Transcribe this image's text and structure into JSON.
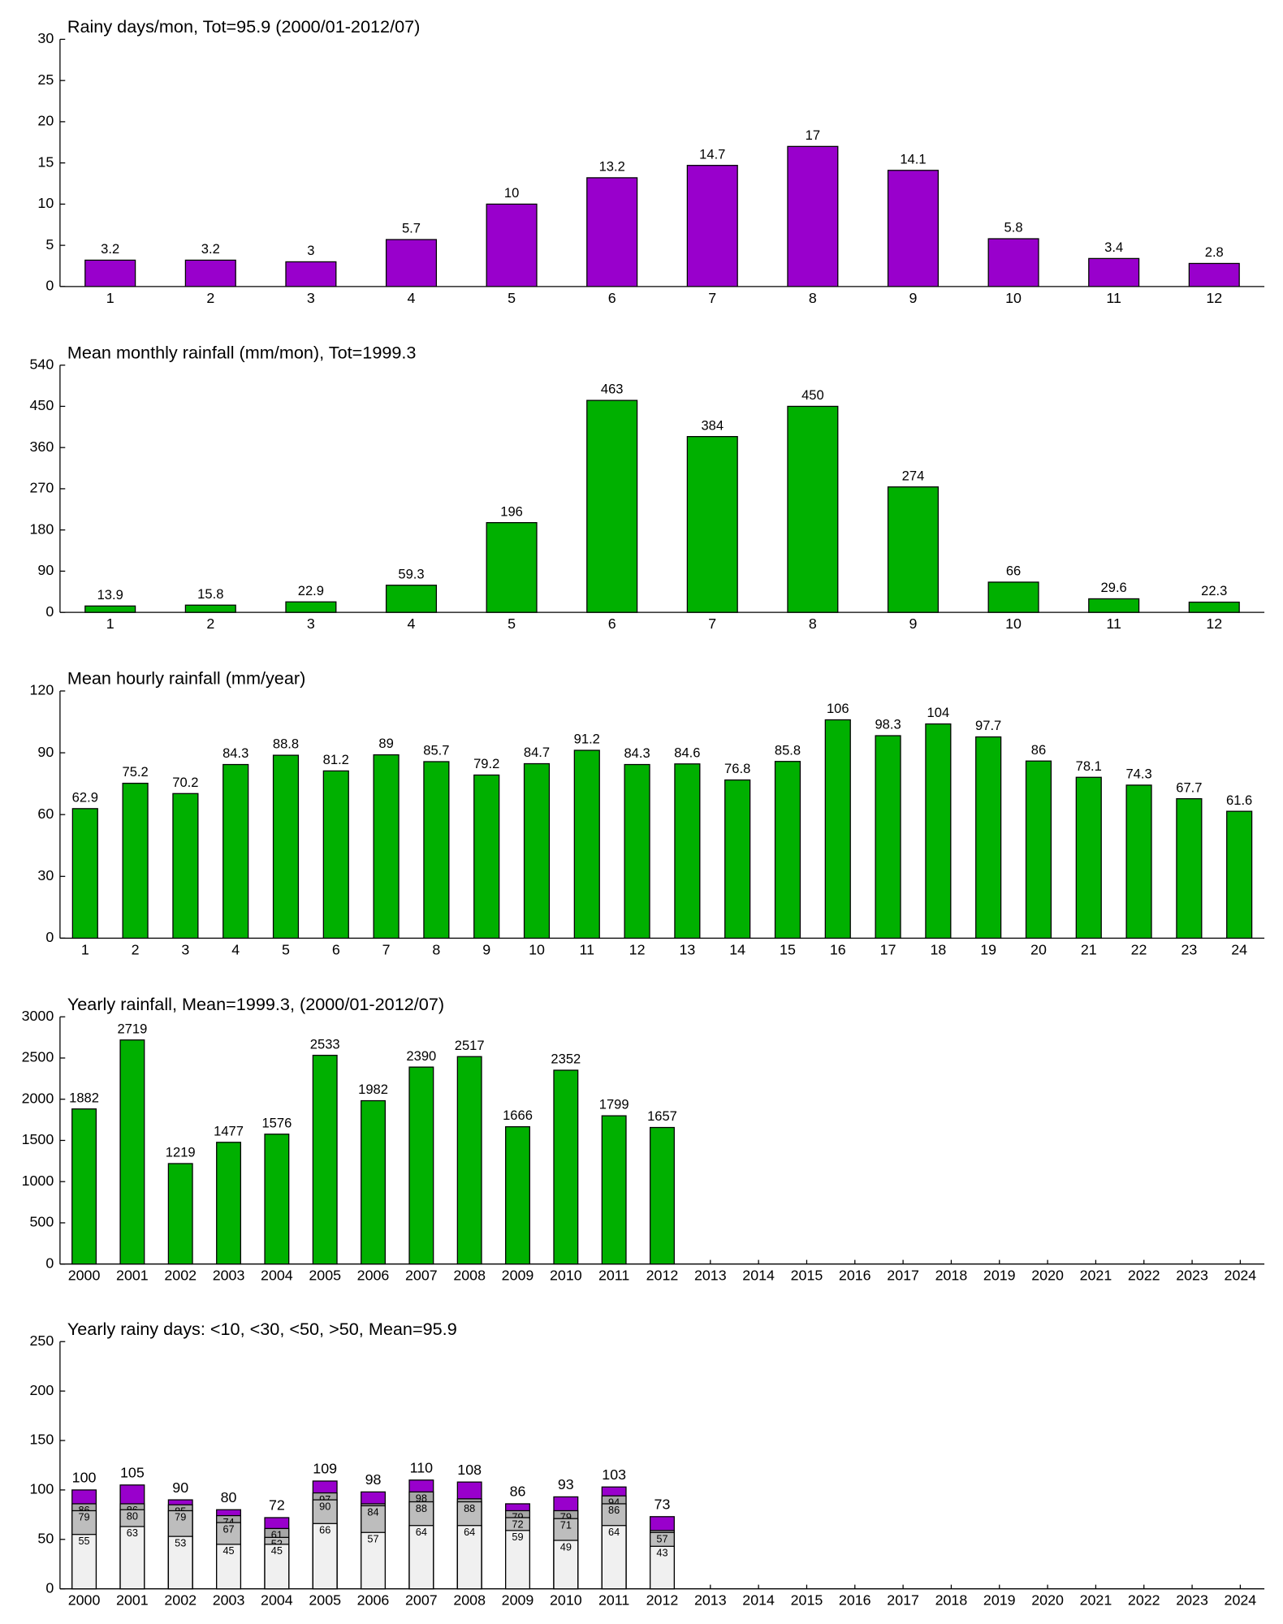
{
  "chart_data": [
    {
      "type": "bar",
      "title": "Rainy days/mon, Tot=95.9 (2000/01-2012/07)",
      "categories": [
        "1",
        "2",
        "3",
        "4",
        "5",
        "6",
        "7",
        "8",
        "9",
        "10",
        "11",
        "12"
      ],
      "values": [
        3.2,
        3.2,
        3,
        5.7,
        10,
        13.2,
        14.7,
        17,
        14.1,
        5.8,
        3.4,
        2.8
      ],
      "color": "#9900cc",
      "ylim": [
        0,
        30
      ],
      "yticks": [
        0,
        5,
        10,
        15,
        20,
        25,
        30
      ]
    },
    {
      "type": "bar",
      "title": "Mean monthly rainfall (mm/mon), Tot=1999.3",
      "categories": [
        "1",
        "2",
        "3",
        "4",
        "5",
        "6",
        "7",
        "8",
        "9",
        "10",
        "11",
        "12"
      ],
      "values": [
        13.9,
        15.8,
        22.9,
        59.3,
        196,
        463,
        384,
        450,
        274,
        66,
        29.6,
        22.3
      ],
      "color": "#00b000",
      "ylim": [
        0,
        540
      ],
      "yticks": [
        0,
        90,
        180,
        270,
        360,
        450,
        540
      ]
    },
    {
      "type": "bar",
      "title": "Mean hourly rainfall (mm/year)",
      "categories": [
        "1",
        "2",
        "3",
        "4",
        "5",
        "6",
        "7",
        "8",
        "9",
        "10",
        "11",
        "12",
        "13",
        "14",
        "15",
        "16",
        "17",
        "18",
        "19",
        "20",
        "21",
        "22",
        "23",
        "24"
      ],
      "values": [
        62.9,
        75.2,
        70.2,
        84.3,
        88.8,
        81.2,
        89,
        85.7,
        79.2,
        84.7,
        91.2,
        84.3,
        84.6,
        76.8,
        85.8,
        106,
        98.3,
        104,
        97.7,
        86,
        78.1,
        74.3,
        67.7,
        61.6
      ],
      "color": "#00b000",
      "ylim": [
        0,
        120
      ],
      "yticks": [
        0,
        30,
        60,
        90,
        120
      ]
    },
    {
      "type": "bar",
      "title": "Yearly rainfall, Mean=1999.3, (2000/01-2012/07)",
      "categories": [
        "2000",
        "2001",
        "2002",
        "2003",
        "2004",
        "2005",
        "2006",
        "2007",
        "2008",
        "2009",
        "2010",
        "2011",
        "2012",
        "2013",
        "2014",
        "2015",
        "2016",
        "2017",
        "2018",
        "2019",
        "2020",
        "2021",
        "2022",
        "2023",
        "2024"
      ],
      "values": [
        1882,
        2719,
        1219,
        1477,
        1576,
        2533,
        1982,
        2390,
        2517,
        1666,
        2352,
        1799,
        1657,
        null,
        null,
        null,
        null,
        null,
        null,
        null,
        null,
        null,
        null,
        null,
        null
      ],
      "color": "#00b000",
      "ylim": [
        0,
        3000
      ],
      "yticks": [
        0,
        500,
        1000,
        1500,
        2000,
        2500,
        3000
      ]
    },
    {
      "type": "bar",
      "stacking": "overlay",
      "title": "Yearly rainy days: <10, <30, <50, >50, Mean=95.9",
      "categories": [
        "2000",
        "2001",
        "2002",
        "2003",
        "2004",
        "2005",
        "2006",
        "2007",
        "2008",
        "2009",
        "2010",
        "2011",
        "2012",
        "2013",
        "2014",
        "2015",
        "2016",
        "2017",
        "2018",
        "2019",
        "2020",
        "2021",
        "2022",
        "2023",
        "2024"
      ],
      "series": [
        {
          "color": "#f0f0f0",
          "values": [
            55,
            63,
            53,
            45,
            45,
            66,
            57,
            64,
            64,
            59,
            49,
            64,
            43,
            null,
            null,
            null,
            null,
            null,
            null,
            null,
            null,
            null,
            null,
            null,
            null
          ]
        },
        {
          "color": "#bdbdbd",
          "values": [
            79,
            80,
            79,
            67,
            52,
            90,
            84,
            88,
            88,
            72,
            71,
            86,
            57,
            null,
            null,
            null,
            null,
            null,
            null,
            null,
            null,
            null,
            null,
            null,
            null
          ]
        },
        {
          "color": "#a6a6a6",
          "values": [
            86,
            86,
            85,
            74,
            61,
            97,
            86,
            98,
            91,
            79,
            79,
            94,
            59,
            null,
            null,
            null,
            null,
            null,
            null,
            null,
            null,
            null,
            null,
            null,
            null
          ],
          "value_labels": [
            "86",
            "86",
            "85",
            "74",
            "61",
            "97",
            null,
            "98",
            null,
            "79",
            "79",
            "94",
            null,
            null,
            null,
            null,
            null,
            null,
            null,
            null,
            null,
            null,
            null,
            null,
            null
          ]
        },
        {
          "color": "#9900cc",
          "values": [
            100,
            105,
            90,
            80,
            72,
            109,
            98,
            110,
            108,
            86,
            93,
            103,
            73,
            null,
            null,
            null,
            null,
            null,
            null,
            null,
            null,
            null,
            null,
            null,
            null
          ]
        }
      ],
      "ylim": [
        0,
        250
      ],
      "yticks": [
        0,
        50,
        100,
        150,
        200,
        250
      ]
    }
  ]
}
